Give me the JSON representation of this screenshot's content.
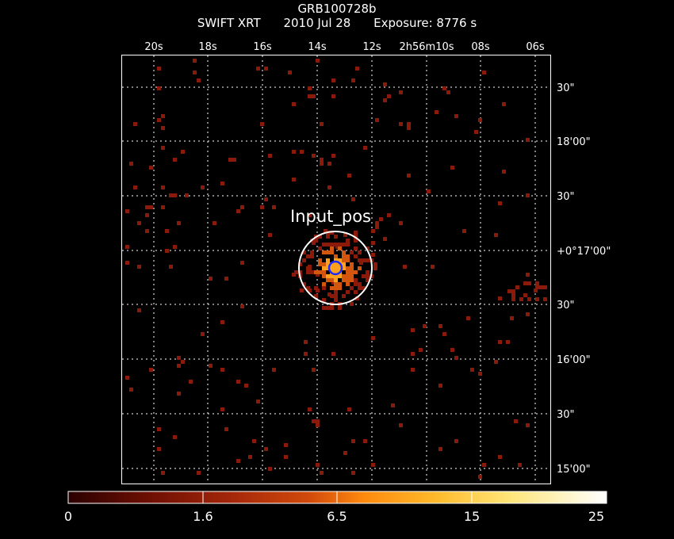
{
  "header": {
    "object": "GRB100728b",
    "instrument": "SWIFT XRT",
    "date": "2010 Jul 28",
    "exposure": "Exposure: 8776 s"
  },
  "top_ticks": [
    {
      "label": "20s"
    },
    {
      "label": "18s"
    },
    {
      "label": "16s"
    },
    {
      "label": "14s"
    },
    {
      "label": "12s"
    },
    {
      "label": "2h56m10s"
    },
    {
      "label": "08s"
    },
    {
      "label": "06s"
    }
  ],
  "right_ticks": [
    {
      "label": "30\""
    },
    {
      "label": "18'00\""
    },
    {
      "label": "30\""
    },
    {
      "label": "+0°17'00\""
    },
    {
      "label": "30\""
    },
    {
      "label": "16'00\""
    },
    {
      "label": "30\""
    },
    {
      "label": "15'00\""
    }
  ],
  "region_label": "Input_pos",
  "colorbar": {
    "labels": [
      "0",
      "1.6",
      "6.5",
      "15",
      "25"
    ]
  },
  "colors": {
    "frame": "#ffffff",
    "grid": "#ffffff",
    "circle_outer": "#ffffff",
    "circle_inner": "#1a2cff",
    "pixel_low": "#8b1a0a",
    "pixel_mid": "#d2560e",
    "pixel_high": "#ffa11c"
  }
}
